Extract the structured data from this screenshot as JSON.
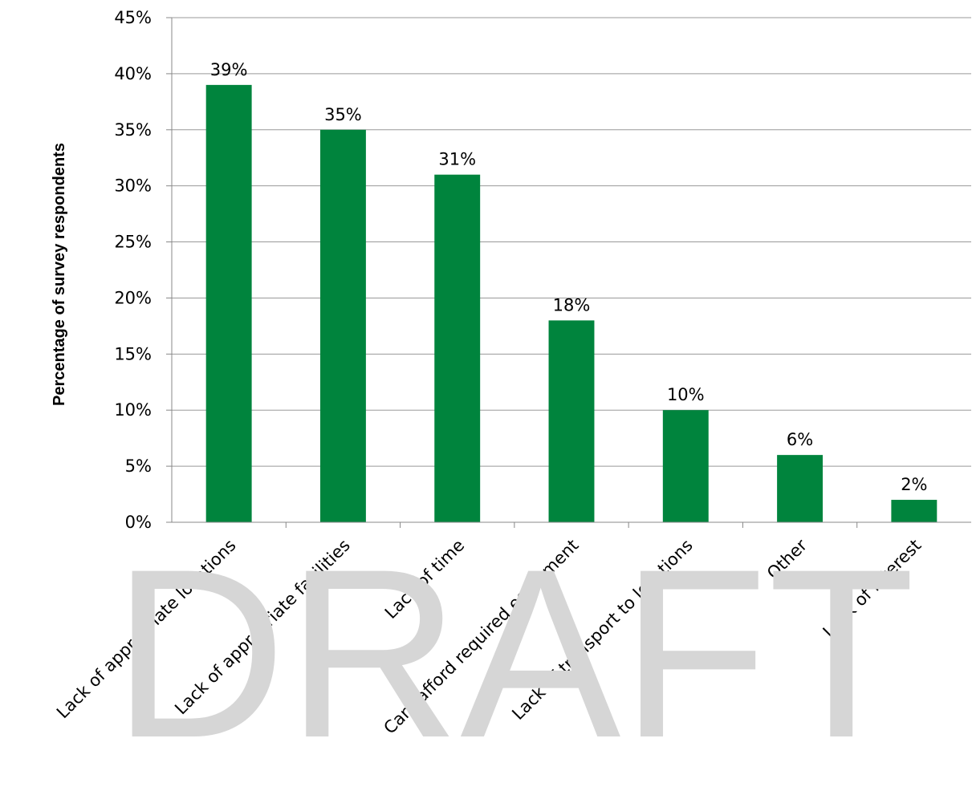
{
  "chart_data": {
    "type": "bar",
    "categories": [
      "Lack of appropriate locations",
      "Lack of appropriate facilities",
      "Lack of time",
      "Cant afford required equipment",
      "Lack of transport to locations",
      "Other",
      "Lack of interest"
    ],
    "values": [
      39,
      35,
      31,
      18,
      10,
      6,
      2
    ],
    "data_labels": [
      "39%",
      "35%",
      "31%",
      "18%",
      "10%",
      "6%",
      "2%"
    ],
    "title": "",
    "xlabel": "",
    "ylabel": "Percentage of survey respondents",
    "ylim": [
      0,
      45
    ],
    "yticks": [
      0,
      5,
      10,
      15,
      20,
      25,
      30,
      35,
      40,
      45
    ],
    "ytick_labels": [
      "0%",
      "5%",
      "10%",
      "15%",
      "20%",
      "25%",
      "30%",
      "35%",
      "40%",
      "45%"
    ],
    "grid": true,
    "legend": "none",
    "bar_color": "#00843d",
    "grid_color": "#999999"
  },
  "watermark": "DRAFT"
}
